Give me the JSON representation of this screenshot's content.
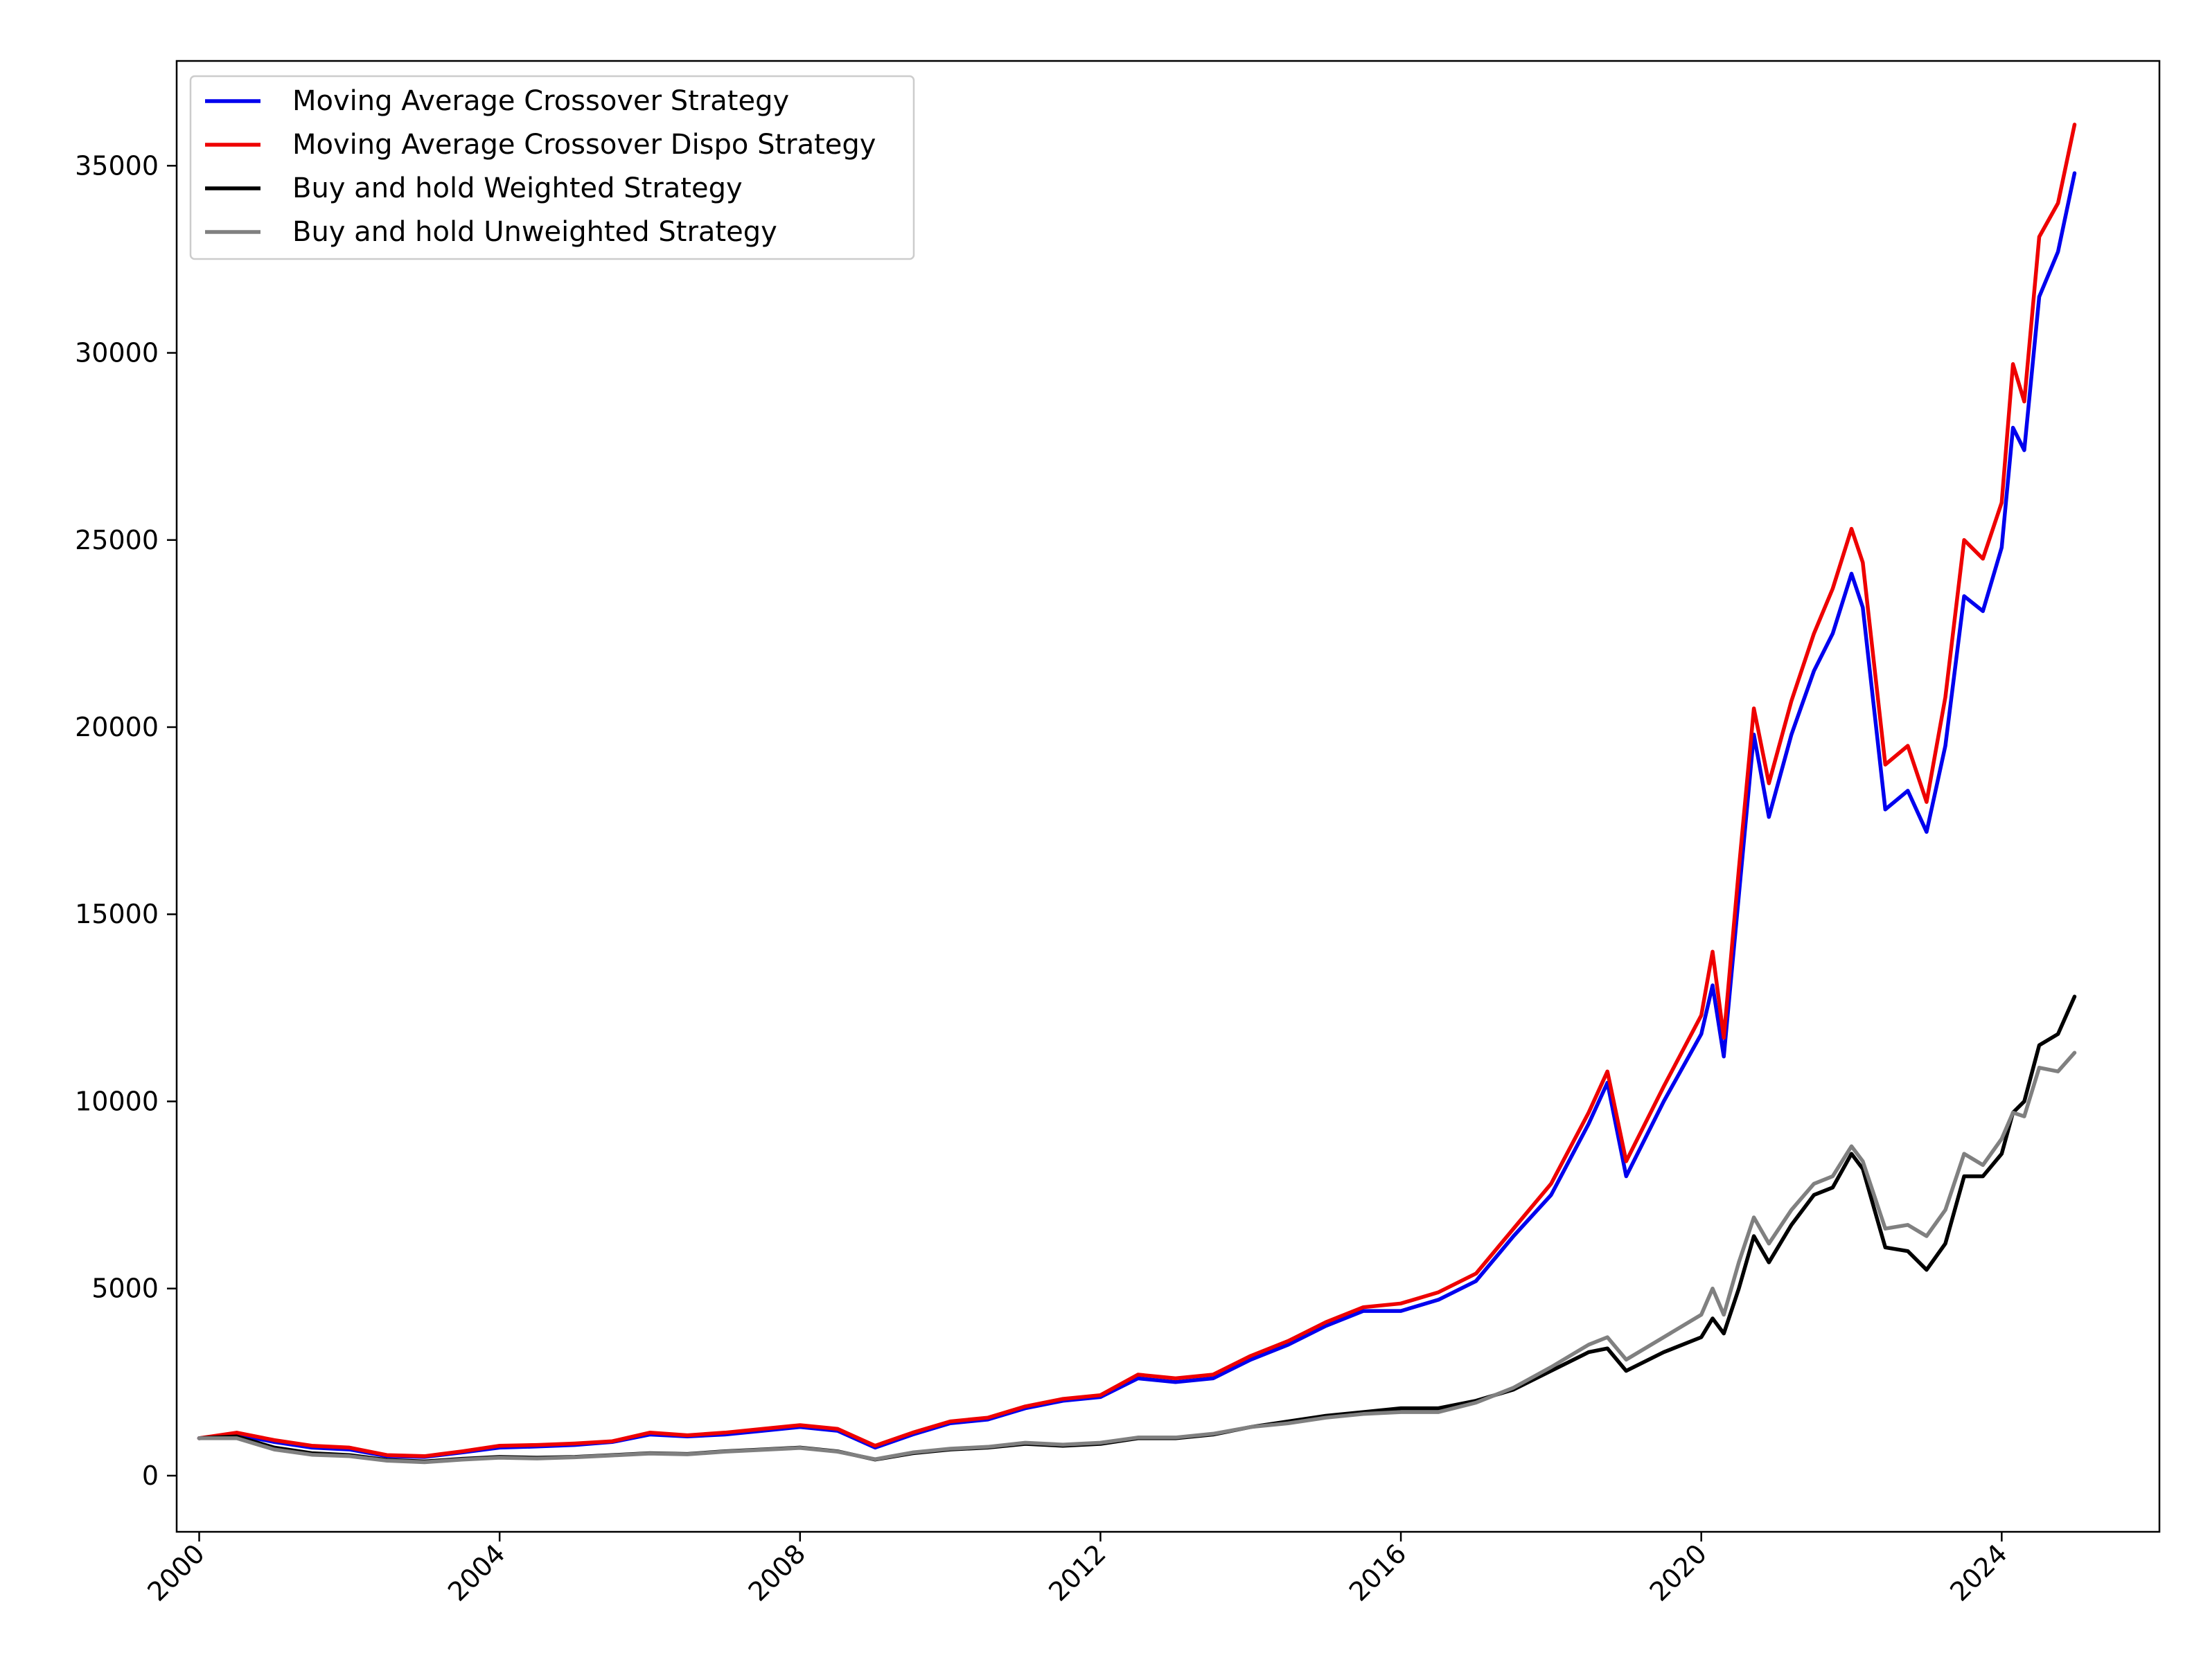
{
  "chart_data": {
    "type": "line",
    "title": "",
    "xlabel": "",
    "ylabel": "",
    "xlim": [
      1999.7,
      2026.1
    ],
    "ylim": [
      -1500,
      37800
    ],
    "xticks": [
      2000,
      2004,
      2008,
      2012,
      2016,
      2020,
      2024
    ],
    "xtick_labels": [
      "2000",
      "2004",
      "2008",
      "2012",
      "2016",
      "2020",
      "2024"
    ],
    "yticks": [
      0,
      5000,
      10000,
      15000,
      20000,
      25000,
      30000,
      35000
    ],
    "ytick_labels": [
      "0",
      "5000",
      "10000",
      "15000",
      "20000",
      "25000",
      "30000",
      "35000"
    ],
    "grid": false,
    "legend": "top-left",
    "series": [
      {
        "name": "Moving Average Crossover Strategy",
        "color": "#0000ee",
        "x": [
          2000.0,
          2000.5,
          2001.0,
          2001.5,
          2002.0,
          2002.5,
          2003.0,
          2003.5,
          2004.0,
          2004.5,
          2005.0,
          2005.5,
          2006.0,
          2006.5,
          2007.0,
          2007.5,
          2008.0,
          2008.5,
          2009.0,
          2009.5,
          2010.0,
          2010.5,
          2011.0,
          2011.5,
          2012.0,
          2012.5,
          2013.0,
          2013.5,
          2014.0,
          2014.5,
          2015.0,
          2015.5,
          2016.0,
          2016.5,
          2017.0,
          2017.5,
          2018.0,
          2018.5,
          2018.75,
          2019.0,
          2019.5,
          2020.0,
          2020.15,
          2020.3,
          2020.5,
          2020.7,
          2020.9,
          2021.2,
          2021.5,
          2021.75,
          2022.0,
          2022.15,
          2022.45,
          2022.75,
          2023.0,
          2023.25,
          2023.5,
          2023.75,
          2024.0,
          2024.15,
          2024.3,
          2024.5,
          2024.75,
          2024.97
        ],
        "y": [
          1000,
          1100,
          900,
          750,
          700,
          520,
          500,
          620,
          750,
          780,
          820,
          900,
          1100,
          1050,
          1100,
          1200,
          1300,
          1200,
          750,
          1100,
          1400,
          1500,
          1800,
          2000,
          2100,
          2600,
          2500,
          2600,
          3100,
          3500,
          4000,
          4400,
          4400,
          4700,
          5200,
          6400,
          7500,
          9400,
          10500,
          8000,
          10000,
          11800,
          13100,
          11200,
          15500,
          19800,
          17600,
          19800,
          21500,
          22500,
          24100,
          23200,
          17800,
          18300,
          17200,
          19500,
          23500,
          23100,
          24800,
          28000,
          27400,
          31500,
          32700,
          34800
        ]
      },
      {
        "name": "Moving Average Crossover Dispo Strategy",
        "color": "#ee0000",
        "x": [
          2000.0,
          2000.5,
          2001.0,
          2001.5,
          2002.0,
          2002.5,
          2003.0,
          2003.5,
          2004.0,
          2004.5,
          2005.0,
          2005.5,
          2006.0,
          2006.5,
          2007.0,
          2007.5,
          2008.0,
          2008.5,
          2009.0,
          2009.5,
          2010.0,
          2010.5,
          2011.0,
          2011.5,
          2012.0,
          2012.5,
          2013.0,
          2013.5,
          2014.0,
          2014.5,
          2015.0,
          2015.5,
          2016.0,
          2016.5,
          2017.0,
          2017.5,
          2018.0,
          2018.5,
          2018.75,
          2019.0,
          2019.5,
          2020.0,
          2020.15,
          2020.3,
          2020.5,
          2020.7,
          2020.9,
          2021.2,
          2021.5,
          2021.75,
          2022.0,
          2022.15,
          2022.45,
          2022.75,
          2023.0,
          2023.25,
          2023.5,
          2023.75,
          2024.0,
          2024.15,
          2024.3,
          2024.5,
          2024.75,
          2024.97
        ],
        "y": [
          1000,
          1150,
          950,
          800,
          750,
          550,
          520,
          650,
          800,
          820,
          860,
          920,
          1150,
          1080,
          1150,
          1250,
          1350,
          1250,
          800,
          1150,
          1450,
          1550,
          1850,
          2050,
          2150,
          2700,
          2600,
          2700,
          3200,
          3600,
          4100,
          4500,
          4600,
          4900,
          5400,
          6600,
          7800,
          9700,
          10800,
          8400,
          10400,
          12300,
          14000,
          11700,
          16200,
          20500,
          18500,
          20700,
          22500,
          23700,
          25300,
          24400,
          19000,
          19500,
          18000,
          20800,
          25000,
          24500,
          26000,
          29700,
          28700,
          33100,
          34000,
          36100
        ]
      },
      {
        "name": "Buy and hold Weighted Strategy",
        "color": "#000000",
        "x": [
          2000.0,
          2000.5,
          2001.0,
          2001.5,
          2002.0,
          2002.5,
          2003.0,
          2003.5,
          2004.0,
          2004.5,
          2005.0,
          2005.5,
          2006.0,
          2006.5,
          2007.0,
          2007.5,
          2008.0,
          2008.5,
          2009.0,
          2009.5,
          2010.0,
          2010.5,
          2011.0,
          2011.5,
          2012.0,
          2012.5,
          2013.0,
          2013.5,
          2014.0,
          2014.5,
          2015.0,
          2015.5,
          2016.0,
          2016.5,
          2017.0,
          2017.5,
          2018.0,
          2018.5,
          2018.75,
          2019.0,
          2019.5,
          2020.0,
          2020.15,
          2020.3,
          2020.5,
          2020.7,
          2020.9,
          2021.2,
          2021.5,
          2021.75,
          2022.0,
          2022.15,
          2022.45,
          2022.75,
          2023.0,
          2023.25,
          2023.5,
          2023.75,
          2024.0,
          2024.15,
          2024.3,
          2024.5,
          2024.75,
          2024.97
        ],
        "y": [
          1000,
          1050,
          750,
          600,
          550,
          420,
          380,
          450,
          500,
          480,
          500,
          550,
          600,
          580,
          650,
          700,
          750,
          650,
          430,
          600,
          700,
          750,
          850,
          800,
          850,
          1000,
          1000,
          1100,
          1300,
          1450,
          1600,
          1700,
          1800,
          1800,
          2000,
          2300,
          2800,
          3300,
          3400,
          2800,
          3300,
          3700,
          4200,
          3800,
          5000,
          6400,
          5700,
          6700,
          7500,
          7700,
          8600,
          8200,
          6100,
          6000,
          5500,
          6200,
          8000,
          8000,
          8600,
          9700,
          10000,
          11500,
          11800,
          12800
        ]
      },
      {
        "name": "Buy and hold Unweighted Strategy",
        "color": "#808080",
        "x": [
          2000.0,
          2000.5,
          2001.0,
          2001.5,
          2002.0,
          2002.5,
          2003.0,
          2003.5,
          2004.0,
          2004.5,
          2005.0,
          2005.5,
          2006.0,
          2006.5,
          2007.0,
          2007.5,
          2008.0,
          2008.5,
          2009.0,
          2009.5,
          2010.0,
          2010.5,
          2011.0,
          2011.5,
          2012.0,
          2012.5,
          2013.0,
          2013.5,
          2014.0,
          2014.5,
          2015.0,
          2015.5,
          2016.0,
          2016.5,
          2017.0,
          2017.5,
          2018.0,
          2018.5,
          2018.75,
          2019.0,
          2019.5,
          2020.0,
          2020.15,
          2020.3,
          2020.5,
          2020.7,
          2020.9,
          2021.2,
          2021.5,
          2021.75,
          2022.0,
          2022.15,
          2022.45,
          2022.75,
          2023.0,
          2023.25,
          2023.5,
          2023.75,
          2024.0,
          2024.15,
          2024.3,
          2024.5,
          2024.75,
          2024.97
        ],
        "y": [
          1000,
          1000,
          700,
          560,
          520,
          400,
          360,
          430,
          480,
          460,
          490,
          540,
          590,
          570,
          640,
          690,
          740,
          640,
          440,
          620,
          720,
          770,
          880,
          830,
          880,
          1020,
          1020,
          1120,
          1300,
          1400,
          1550,
          1650,
          1700,
          1700,
          1950,
          2350,
          2900,
          3500,
          3700,
          3100,
          3700,
          4300,
          5000,
          4300,
          5700,
          6900,
          6200,
          7100,
          7800,
          8000,
          8800,
          8400,
          6600,
          6700,
          6400,
          7100,
          8600,
          8300,
          9000,
          9700,
          9600,
          10900,
          10800,
          11300
        ]
      }
    ]
  }
}
